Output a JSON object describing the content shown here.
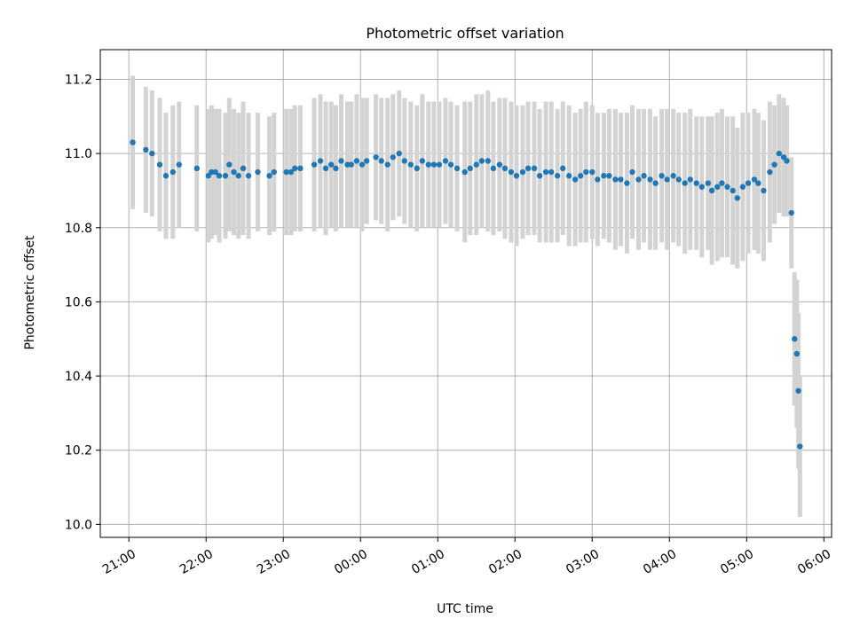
{
  "chart_data": {
    "type": "scatter",
    "title": "Photometric offset variation",
    "xlabel": "UTC time",
    "ylabel": "Photometric offset",
    "x_unit": "UTC hours (values past 24 fall on the next day)",
    "xlim": [
      20.63,
      30.1
    ],
    "ylim": [
      9.965,
      11.28
    ],
    "xticks": [
      {
        "value": 21,
        "label": "21:00"
      },
      {
        "value": 22,
        "label": "22:00"
      },
      {
        "value": 23,
        "label": "23:00"
      },
      {
        "value": 24,
        "label": "00:00"
      },
      {
        "value": 25,
        "label": "01:00"
      },
      {
        "value": 26,
        "label": "02:00"
      },
      {
        "value": 27,
        "label": "03:00"
      },
      {
        "value": 28,
        "label": "04:00"
      },
      {
        "value": 29,
        "label": "05:00"
      },
      {
        "value": 30,
        "label": "06:00"
      }
    ],
    "yticks": [
      {
        "value": 10.0,
        "label": "10.0"
      },
      {
        "value": 10.2,
        "label": "10.2"
      },
      {
        "value": 10.4,
        "label": "10.4"
      },
      {
        "value": 10.6,
        "label": "10.6"
      },
      {
        "value": 10.8,
        "label": "10.8"
      },
      {
        "value": 11.0,
        "label": "11.0"
      },
      {
        "value": 11.2,
        "label": "11.2"
      }
    ],
    "grid": true,
    "series": [
      {
        "marker_color": "#1f77b4",
        "errorbar_color": "#d3d3d3",
        "x": [
          21.05,
          21.22,
          21.3,
          21.4,
          21.48,
          21.57,
          21.65,
          21.88,
          22.03,
          22.07,
          22.12,
          22.17,
          22.25,
          22.3,
          22.36,
          22.42,
          22.48,
          22.55,
          22.67,
          22.82,
          22.88,
          23.04,
          23.1,
          23.15,
          23.22,
          23.4,
          23.48,
          23.55,
          23.62,
          23.68,
          23.75,
          23.83,
          23.88,
          23.95,
          24.02,
          24.08,
          24.2,
          24.27,
          24.35,
          24.42,
          24.5,
          24.57,
          24.65,
          24.73,
          24.8,
          24.88,
          24.95,
          25.02,
          25.1,
          25.17,
          25.25,
          25.35,
          25.42,
          25.5,
          25.57,
          25.65,
          25.72,
          25.8,
          25.87,
          25.95,
          26.02,
          26.1,
          26.17,
          26.25,
          26.32,
          26.4,
          26.47,
          26.55,
          26.62,
          26.7,
          26.78,
          26.85,
          26.92,
          27.0,
          27.07,
          27.15,
          27.22,
          27.3,
          27.37,
          27.45,
          27.52,
          27.6,
          27.67,
          27.75,
          27.82,
          27.9,
          27.97,
          28.05,
          28.12,
          28.2,
          28.27,
          28.35,
          28.42,
          28.5,
          28.55,
          28.62,
          28.68,
          28.75,
          28.82,
          28.88,
          28.95,
          29.02,
          29.1,
          29.15,
          29.22,
          29.3,
          29.36,
          29.42,
          29.48,
          29.52,
          29.58,
          29.62,
          29.65,
          29.67,
          29.69
        ],
        "y": [
          11.03,
          11.01,
          11.0,
          10.97,
          10.94,
          10.95,
          10.97,
          10.96,
          10.94,
          10.95,
          10.95,
          10.94,
          10.94,
          10.97,
          10.95,
          10.94,
          10.96,
          10.94,
          10.95,
          10.94,
          10.95,
          10.95,
          10.95,
          10.96,
          10.96,
          10.97,
          10.98,
          10.96,
          10.97,
          10.96,
          10.98,
          10.97,
          10.97,
          10.98,
          10.97,
          10.98,
          10.99,
          10.98,
          10.97,
          10.99,
          11.0,
          10.98,
          10.97,
          10.96,
          10.98,
          10.97,
          10.97,
          10.97,
          10.98,
          10.97,
          10.96,
          10.95,
          10.96,
          10.97,
          10.98,
          10.98,
          10.96,
          10.97,
          10.96,
          10.95,
          10.94,
          10.95,
          10.96,
          10.96,
          10.94,
          10.95,
          10.95,
          10.94,
          10.96,
          10.94,
          10.93,
          10.94,
          10.95,
          10.95,
          10.93,
          10.94,
          10.94,
          10.93,
          10.93,
          10.92,
          10.95,
          10.93,
          10.94,
          10.93,
          10.92,
          10.94,
          10.93,
          10.94,
          10.93,
          10.92,
          10.93,
          10.92,
          10.91,
          10.92,
          10.9,
          10.91,
          10.92,
          10.91,
          10.9,
          10.88,
          10.91,
          10.92,
          10.93,
          10.92,
          10.9,
          10.95,
          10.97,
          11.0,
          10.99,
          10.98,
          10.84,
          10.5,
          10.46,
          10.36,
          10.21
        ],
        "err": [
          0.18,
          0.17,
          0.17,
          0.18,
          0.17,
          0.18,
          0.17,
          0.17,
          0.18,
          0.18,
          0.17,
          0.18,
          0.17,
          0.18,
          0.17,
          0.17,
          0.18,
          0.17,
          0.16,
          0.16,
          0.16,
          0.17,
          0.17,
          0.17,
          0.17,
          0.18,
          0.18,
          0.18,
          0.17,
          0.17,
          0.18,
          0.17,
          0.17,
          0.18,
          0.18,
          0.17,
          0.17,
          0.17,
          0.18,
          0.17,
          0.17,
          0.17,
          0.17,
          0.17,
          0.18,
          0.17,
          0.17,
          0.17,
          0.17,
          0.17,
          0.17,
          0.19,
          0.18,
          0.19,
          0.18,
          0.19,
          0.18,
          0.18,
          0.19,
          0.19,
          0.19,
          0.18,
          0.18,
          0.18,
          0.18,
          0.19,
          0.19,
          0.18,
          0.18,
          0.19,
          0.18,
          0.18,
          0.19,
          0.18,
          0.18,
          0.17,
          0.18,
          0.19,
          0.18,
          0.19,
          0.18,
          0.19,
          0.18,
          0.19,
          0.18,
          0.18,
          0.19,
          0.18,
          0.18,
          0.19,
          0.19,
          0.18,
          0.19,
          0.18,
          0.2,
          0.2,
          0.2,
          0.19,
          0.2,
          0.19,
          0.2,
          0.19,
          0.19,
          0.19,
          0.19,
          0.19,
          0.16,
          0.16,
          0.16,
          0.15,
          0.15,
          0.18,
          0.2,
          0.21,
          0.19
        ]
      }
    ]
  }
}
